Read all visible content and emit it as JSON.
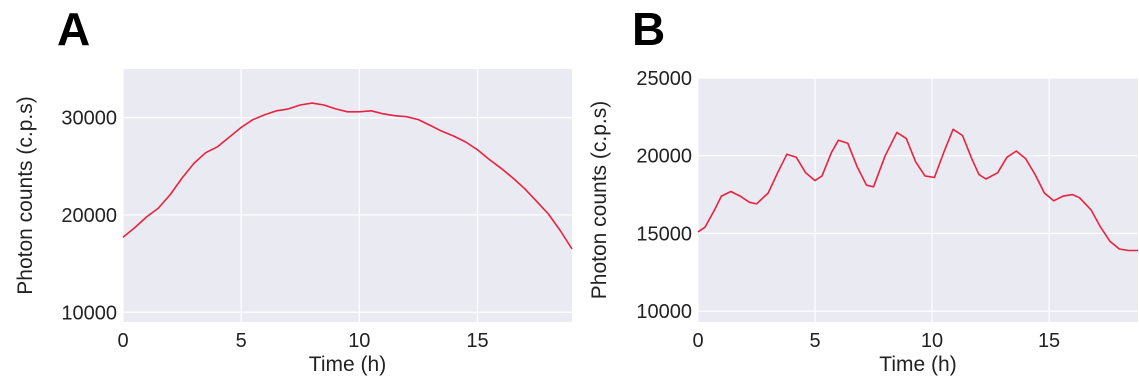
{
  "panels": [
    {
      "letter": "A"
    },
    {
      "letter": "B"
    }
  ],
  "chart_data": [
    {
      "type": "line",
      "title": "",
      "xlabel": "Time (h)",
      "ylabel": "Photon counts (c.p.s)",
      "xlim": [
        0,
        19
      ],
      "ylim": [
        9000,
        35000
      ],
      "xticks": [
        0,
        5,
        10,
        15
      ],
      "yticks": [
        10000,
        20000,
        30000
      ],
      "xtick_labels": [
        "0",
        "5",
        "10",
        "15"
      ],
      "ytick_labels": [
        "10000",
        "20000",
        "30000"
      ],
      "grid": true,
      "colors": {
        "background": "#eaeaf2",
        "grid": "#ffffff",
        "line": "#e8233f"
      },
      "series": [
        {
          "x": [
            0,
            0.5,
            1,
            1.5,
            2,
            2.5,
            3,
            3.5,
            4,
            4.5,
            5,
            5.5,
            6,
            6.5,
            7,
            7.5,
            8,
            8.5,
            9,
            9.5,
            10,
            10.5,
            11,
            11.5,
            12,
            12.5,
            13,
            13.5,
            14,
            14.5,
            15,
            15.5,
            16,
            16.5,
            17,
            17.5,
            18,
            18.5,
            19
          ],
          "values": [
            17700,
            18700,
            19800,
            20700,
            22100,
            23800,
            25300,
            26400,
            27000,
            28000,
            29000,
            29800,
            30300,
            30700,
            30900,
            31300,
            31500,
            31300,
            30900,
            30600,
            30600,
            30700,
            30400,
            30200,
            30100,
            29800,
            29200,
            28600,
            28100,
            27500,
            26700,
            25700,
            24800,
            23800,
            22700,
            21400,
            20100,
            18400,
            16500
          ]
        }
      ]
    },
    {
      "type": "line",
      "title": "",
      "xlabel": "Time (h)",
      "ylabel": "Photon counts (c.p.s)",
      "xlim": [
        0,
        18.8
      ],
      "ylim": [
        9300,
        25000
      ],
      "xticks": [
        0,
        5,
        10,
        15
      ],
      "yticks": [
        10000,
        15000,
        20000,
        25000
      ],
      "xtick_labels": [
        "0",
        "5",
        "10",
        "15"
      ],
      "ytick_labels": [
        "10000",
        "15000",
        "20000",
        "25000"
      ],
      "grid": true,
      "colors": {
        "background": "#eaeaf2",
        "grid": "#ffffff",
        "line": "#e8233f"
      },
      "series": [
        {
          "x": [
            0,
            0.3,
            0.7,
            1,
            1.4,
            1.8,
            2.2,
            2.5,
            3,
            3.4,
            3.8,
            4.2,
            4.6,
            5,
            5.3,
            5.7,
            6,
            6.4,
            6.8,
            7.2,
            7.5,
            8,
            8.5,
            8.9,
            9.3,
            9.7,
            10.1,
            10.5,
            10.9,
            11.3,
            11.7,
            12,
            12.3,
            12.8,
            13.2,
            13.6,
            14,
            14.4,
            14.8,
            15.2,
            15.6,
            16,
            16.3,
            16.8,
            17.2,
            17.6,
            18,
            18.4,
            18.8
          ],
          "values": [
            15100,
            15400,
            16500,
            17400,
            17700,
            17400,
            17000,
            16900,
            17600,
            18900,
            20100,
            19900,
            18900,
            18400,
            18700,
            20200,
            21000,
            20800,
            19300,
            18100,
            18000,
            20000,
            21500,
            21100,
            19600,
            18700,
            18600,
            20200,
            21700,
            21300,
            19800,
            18800,
            18500,
            18900,
            19900,
            20300,
            19800,
            18800,
            17600,
            17100,
            17400,
            17500,
            17300,
            16500,
            15400,
            14500,
            14000,
            13900,
            13900
          ]
        }
      ]
    }
  ]
}
